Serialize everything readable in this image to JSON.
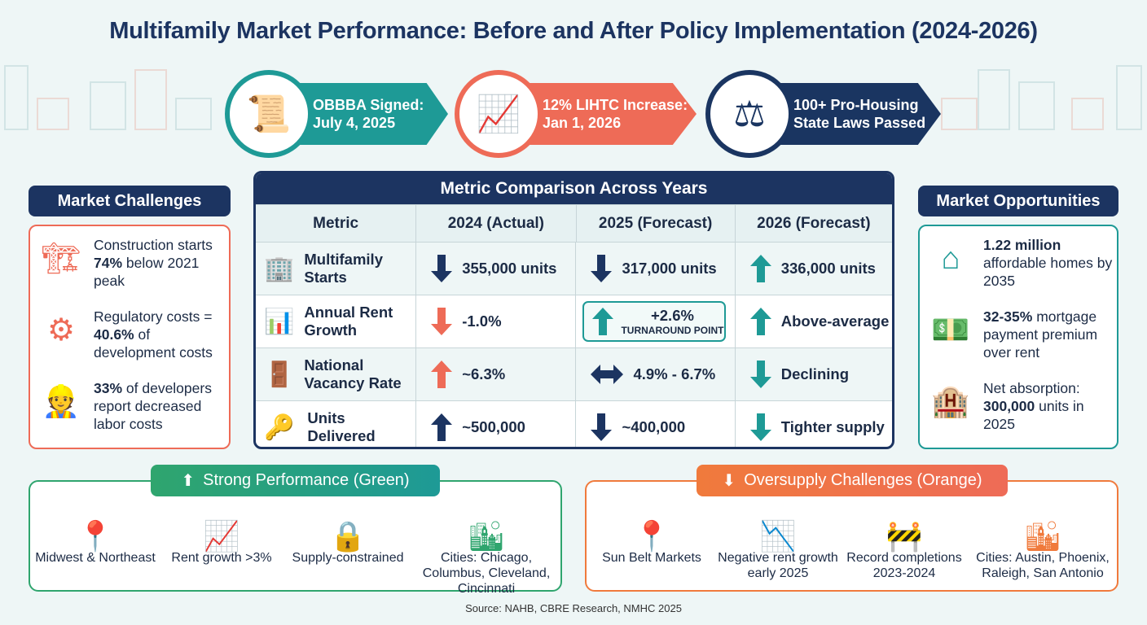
{
  "title": "Multifamily Market Performance: Before and After Policy Implementation (2024-2026)",
  "banner": [
    {
      "icon": "document-certificate-icon",
      "line1": "OBBBA Signed:",
      "line2": "July 4, 2025",
      "color": "#1e9a96"
    },
    {
      "icon": "coins-growth-icon",
      "line1": "12% LIHTC Increase:",
      "line2": "Jan 1, 2026",
      "color": "#ee6b57"
    },
    {
      "icon": "gavel-icon",
      "line1": "100+ Pro-Housing",
      "line2": "State Laws Passed",
      "color": "#1a3561"
    }
  ],
  "challenges": {
    "title": "Market Challenges",
    "items": [
      {
        "icon": "crane-icon",
        "pre": "Construction starts ",
        "bold": "74%",
        "post": " below 2021 peak"
      },
      {
        "icon": "gear-dollar-icon",
        "pre": "Regulatory costs = ",
        "bold": "40.6%",
        "post": " of development costs"
      },
      {
        "icon": "worker-icon",
        "pre": "",
        "bold": "33%",
        "post": " of developers report decreased labor costs"
      }
    ]
  },
  "table": {
    "title": "Metric Comparison Across Years",
    "headers": [
      "Metric",
      "2024 (Actual)",
      "2025 (Forecast)",
      "2026 (Forecast)"
    ],
    "rows": [
      {
        "icon": "building-icon",
        "metric": "Multifamily Starts",
        "cells": [
          {
            "dir": "down",
            "color": "#1c3461",
            "text": "355,000 units"
          },
          {
            "dir": "down",
            "color": "#1c3461",
            "text": "317,000 units"
          },
          {
            "dir": "up",
            "color": "#1e9a96",
            "text": "336,000 units"
          }
        ]
      },
      {
        "icon": "growth-chart-icon",
        "metric": "Annual Rent Growth",
        "cells": [
          {
            "dir": "down",
            "color": "#ee6b57",
            "text": "-1.0%"
          },
          {
            "dir": "up",
            "color": "#1e9a96",
            "text": "+2.6%",
            "note": "TURNAROUND POINT"
          },
          {
            "dir": "up",
            "color": "#1e9a96",
            "text": "Above-average"
          }
        ]
      },
      {
        "icon": "door-key-icon",
        "metric": "National Vacancy Rate",
        "cells": [
          {
            "dir": "up",
            "color": "#ee6b57",
            "text": "~6.3%"
          },
          {
            "dir": "both",
            "color": "#1c3461",
            "text": "4.9% - 6.7%"
          },
          {
            "dir": "down",
            "color": "#1e9a96",
            "text": "Declining"
          }
        ]
      },
      {
        "icon": "key-icon",
        "metric": "Units Delivered",
        "cells": [
          {
            "dir": "up",
            "color": "#1c3461",
            "text": "~500,000"
          },
          {
            "dir": "down",
            "color": "#1c3461",
            "text": "~400,000"
          },
          {
            "dir": "down",
            "color": "#1e9a96",
            "text": "Tighter supply"
          }
        ]
      }
    ]
  },
  "opportunities": {
    "title": "Market Opportunities",
    "items": [
      {
        "icon": "house-heart-icon",
        "pre": "",
        "bold": "1.22 million",
        "post": " affordable homes by 2035"
      },
      {
        "icon": "money-growth-icon",
        "pre": "",
        "bold": "32-35%",
        "post": " mortgage payment premium over rent"
      },
      {
        "icon": "building-plus-icon",
        "pre": "Net absorption: ",
        "bold": "300,000",
        "post": " units in 2025"
      }
    ]
  },
  "strong": {
    "title": "Strong Performance (Green)",
    "color": "#2fa56e",
    "items": [
      {
        "icon": "map-pin-icon",
        "text": "Midwest & Northeast"
      },
      {
        "icon": "bar-growth-icon",
        "text": "Rent growth >3%"
      },
      {
        "icon": "lock-icon",
        "text": "Supply-constrained"
      },
      {
        "icon": "city-icon",
        "text": "Cities: Chicago, Columbus, Cleveland, Cincinnati"
      }
    ]
  },
  "oversupply": {
    "title": "Oversupply Challenges (Orange)",
    "color": "#f07a3c",
    "items": [
      {
        "icon": "map-pin-icon",
        "text": "Sun Belt Markets"
      },
      {
        "icon": "bar-decline-icon",
        "text": "Negative rent growth early 2025"
      },
      {
        "icon": "barrier-icon",
        "text": "Record completions 2023-2024"
      },
      {
        "icon": "city-icon",
        "text": "Cities: Austin, Phoenix, Raleigh, San Antonio"
      }
    ]
  },
  "source": "Source: NAHB, CBRE Research, NMHC 2025"
}
